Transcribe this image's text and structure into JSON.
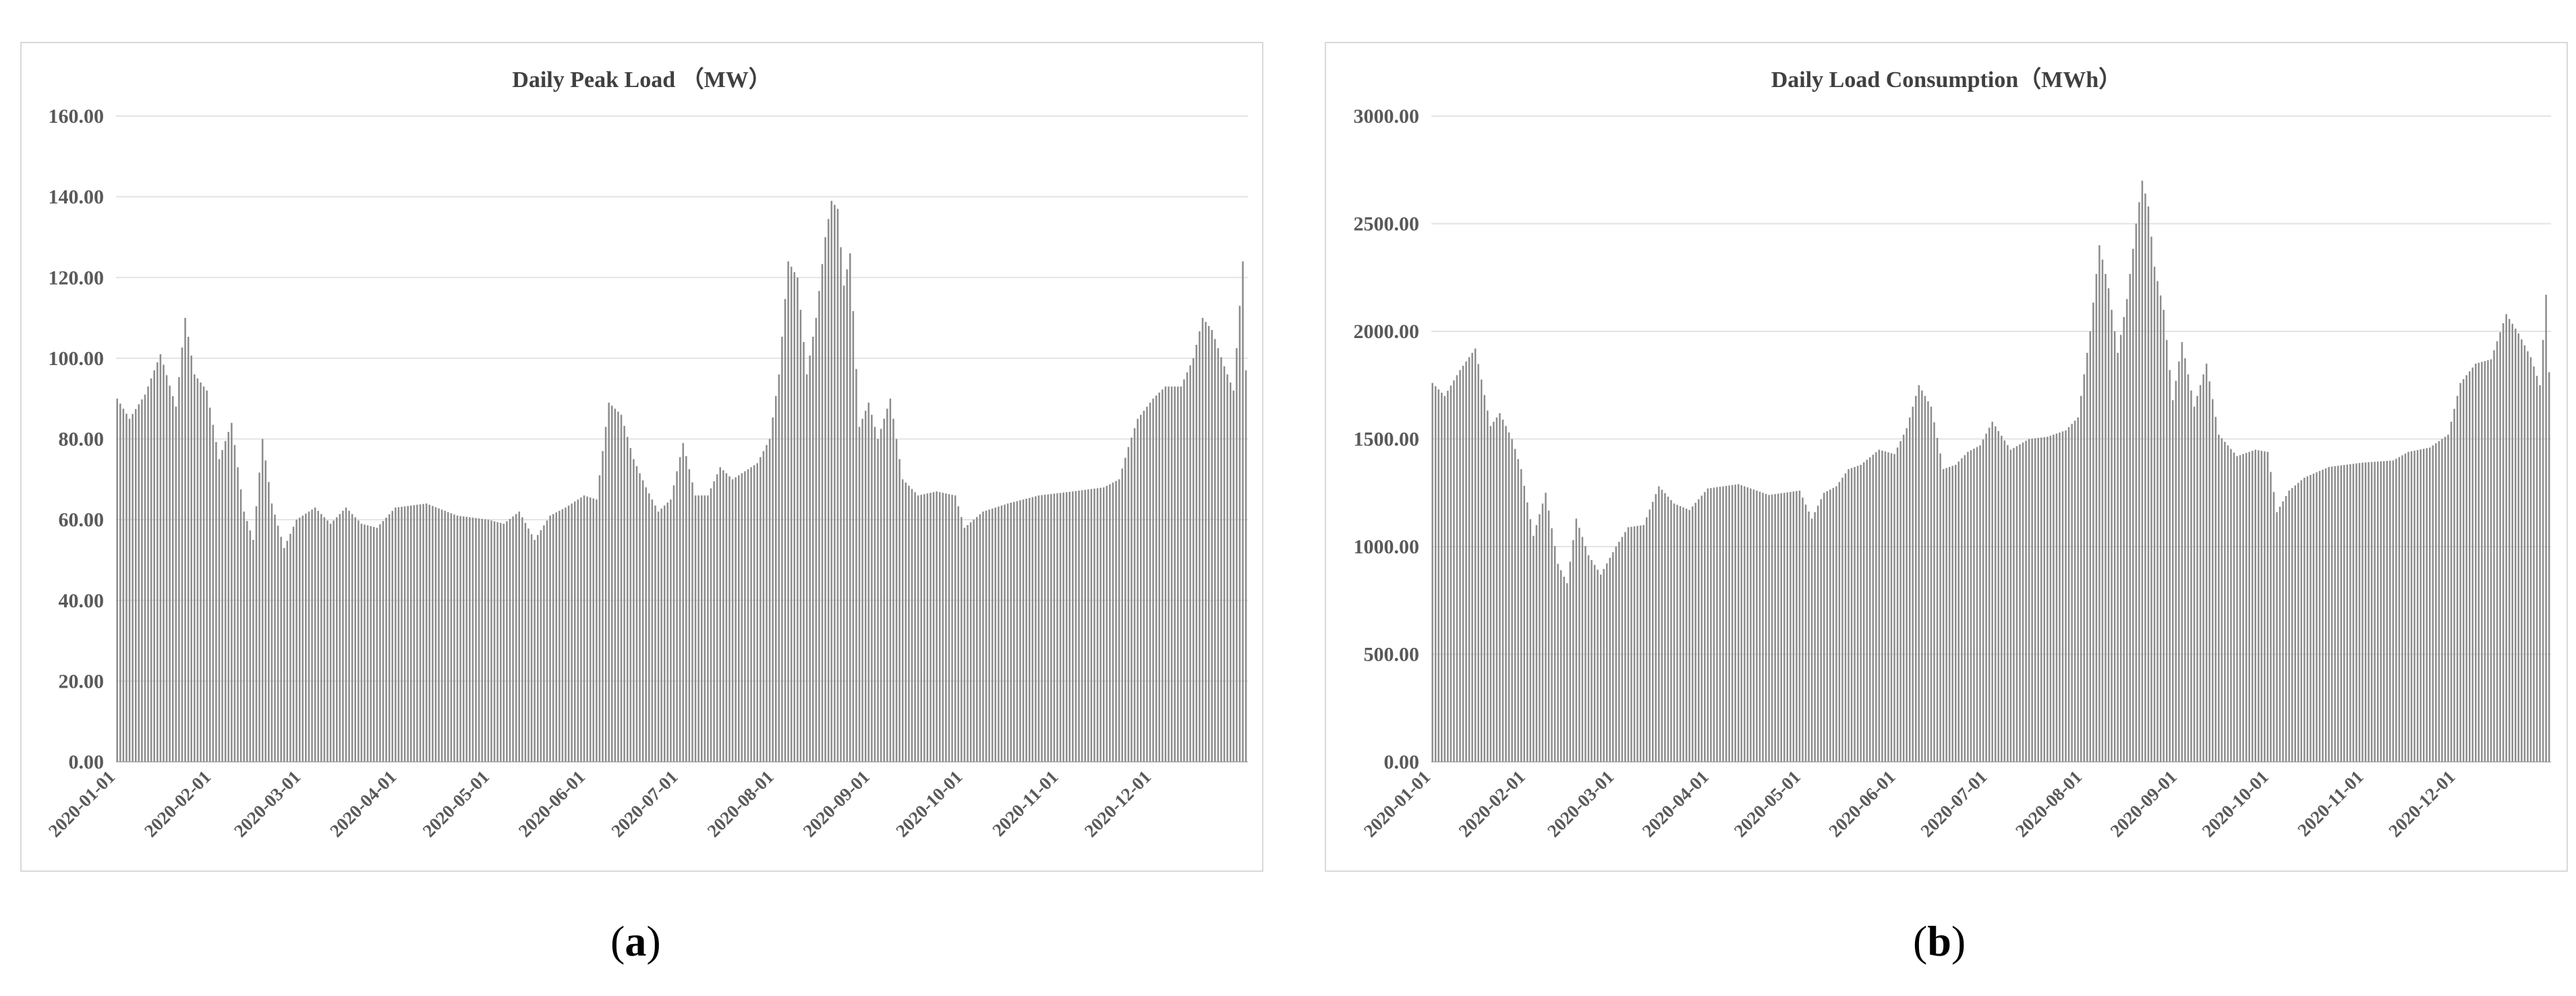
{
  "chart_data": [
    {
      "type": "bar",
      "title": "Daily Peak Load （MW）",
      "xlabel": "",
      "ylabel": "",
      "ylim": [
        0,
        160
      ],
      "y_ticks": [
        "0.00",
        "20.00",
        "40.00",
        "60.00",
        "80.00",
        "100.00",
        "120.00",
        "140.00",
        "160.00"
      ],
      "x_ticks": [
        "2020-01-01",
        "2020-02-01",
        "2020-03-01",
        "2020-04-01",
        "2020-05-01",
        "2020-06-01",
        "2020-07-01",
        "2020-08-01",
        "2020-09-01",
        "2020-10-01",
        "2020-11-01",
        "2020-12-01"
      ],
      "grid": true,
      "bar_color": "#8c8c8c",
      "series": [
        {
          "keypoints": [
            [
              "2020-01-01",
              90
            ],
            [
              "2020-01-05",
              85
            ],
            [
              "2020-01-10",
              91
            ],
            [
              "2020-01-15",
              101
            ],
            [
              "2020-01-20",
              88
            ],
            [
              "2020-01-23",
              110
            ],
            [
              "2020-01-26",
              96
            ],
            [
              "2020-01-30",
              92
            ],
            [
              "2020-02-03",
              75
            ],
            [
              "2020-02-07",
              84
            ],
            [
              "2020-02-11",
              62
            ],
            [
              "2020-02-14",
              55
            ],
            [
              "2020-02-17",
              80
            ],
            [
              "2020-02-20",
              64
            ],
            [
              "2020-02-24",
              53
            ],
            [
              "2020-02-28",
              60
            ],
            [
              "2020-03-05",
              63
            ],
            [
              "2020-03-10",
              59
            ],
            [
              "2020-03-15",
              63
            ],
            [
              "2020-03-20",
              59
            ],
            [
              "2020-03-25",
              58
            ],
            [
              "2020-03-31",
              63
            ],
            [
              "2020-04-10",
              64
            ],
            [
              "2020-04-20",
              61
            ],
            [
              "2020-04-30",
              60
            ],
            [
              "2020-05-05",
              59
            ],
            [
              "2020-05-10",
              62
            ],
            [
              "2020-05-15",
              55
            ],
            [
              "2020-05-20",
              61
            ],
            [
              "2020-05-25",
              63
            ],
            [
              "2020-05-31",
              66
            ],
            [
              "2020-06-04",
              65
            ],
            [
              "2020-06-08",
              89
            ],
            [
              "2020-06-12",
              86
            ],
            [
              "2020-06-16",
              75
            ],
            [
              "2020-06-20",
              68
            ],
            [
              "2020-06-24",
              62
            ],
            [
              "2020-06-28",
              65
            ],
            [
              "2020-07-02",
              79
            ],
            [
              "2020-07-06",
              66
            ],
            [
              "2020-07-10",
              66
            ],
            [
              "2020-07-14",
              73
            ],
            [
              "2020-07-18",
              70
            ],
            [
              "2020-07-22",
              72
            ],
            [
              "2020-07-26",
              74
            ],
            [
              "2020-07-30",
              80
            ],
            [
              "2020-08-02",
              96
            ],
            [
              "2020-08-05",
              124
            ],
            [
              "2020-08-08",
              120
            ],
            [
              "2020-08-11",
              96
            ],
            [
              "2020-08-14",
              110
            ],
            [
              "2020-08-17",
              130
            ],
            [
              "2020-08-19",
              139
            ],
            [
              "2020-08-21",
              137
            ],
            [
              "2020-08-23",
              118
            ],
            [
              "2020-08-25",
              126
            ],
            [
              "2020-08-28",
              83
            ],
            [
              "2020-08-31",
              89
            ],
            [
              "2020-09-03",
              80
            ],
            [
              "2020-09-07",
              90
            ],
            [
              "2020-09-11",
              70
            ],
            [
              "2020-09-16",
              66
            ],
            [
              "2020-09-22",
              67
            ],
            [
              "2020-09-28",
              66
            ],
            [
              "2020-10-01",
              58
            ],
            [
              "2020-10-07",
              62
            ],
            [
              "2020-10-15",
              64
            ],
            [
              "2020-10-25",
              66
            ],
            [
              "2020-11-05",
              67
            ],
            [
              "2020-11-15",
              68
            ],
            [
              "2020-11-20",
              70
            ],
            [
              "2020-11-23",
              78
            ],
            [
              "2020-11-26",
              85
            ],
            [
              "2020-12-01",
              90
            ],
            [
              "2020-12-05",
              93
            ],
            [
              "2020-12-10",
              93
            ],
            [
              "2020-12-14",
              100
            ],
            [
              "2020-12-17",
              110
            ],
            [
              "2020-12-20",
              107
            ],
            [
              "2020-12-24",
              98
            ],
            [
              "2020-12-27",
              92
            ],
            [
              "2020-12-29",
              113
            ],
            [
              "2020-12-30",
              124
            ],
            [
              "2020-12-31",
              97
            ]
          ]
        }
      ]
    },
    {
      "type": "bar",
      "title": "Daily Load Consumption（MWh）",
      "xlabel": "",
      "ylabel": "",
      "ylim": [
        0,
        3000
      ],
      "y_ticks": [
        "0.00",
        "500.00",
        "1000.00",
        "1500.00",
        "2000.00",
        "2500.00",
        "3000.00"
      ],
      "x_ticks": [
        "2020-01-01",
        "2020-02-01",
        "2020-03-01",
        "2020-04-01",
        "2020-05-01",
        "2020-06-01",
        "2020-07-01",
        "2020-08-01",
        "2020-09-01",
        "2020-10-01",
        "2020-11-01",
        "2020-12-01"
      ],
      "grid": true,
      "bar_color": "#8c8c8c",
      "series": [
        {
          "keypoints": [
            [
              "2020-01-01",
              1760
            ],
            [
              "2020-01-05",
              1700
            ],
            [
              "2020-01-10",
              1820
            ],
            [
              "2020-01-15",
              1920
            ],
            [
              "2020-01-20",
              1560
            ],
            [
              "2020-01-23",
              1620
            ],
            [
              "2020-01-27",
              1500
            ],
            [
              "2020-01-30",
              1360
            ],
            [
              "2020-02-03",
              1050
            ],
            [
              "2020-02-07",
              1250
            ],
            [
              "2020-02-11",
              920
            ],
            [
              "2020-02-14",
              830
            ],
            [
              "2020-02-17",
              1130
            ],
            [
              "2020-02-21",
              960
            ],
            [
              "2020-02-25",
              870
            ],
            [
              "2020-03-01",
              1000
            ],
            [
              "2020-03-05",
              1090
            ],
            [
              "2020-03-10",
              1100
            ],
            [
              "2020-03-15",
              1280
            ],
            [
              "2020-03-20",
              1200
            ],
            [
              "2020-03-25",
              1170
            ],
            [
              "2020-03-31",
              1270
            ],
            [
              "2020-04-10",
              1290
            ],
            [
              "2020-04-20",
              1240
            ],
            [
              "2020-04-30",
              1260
            ],
            [
              "2020-05-04",
              1130
            ],
            [
              "2020-05-08",
              1250
            ],
            [
              "2020-05-12",
              1280
            ],
            [
              "2020-05-16",
              1360
            ],
            [
              "2020-05-20",
              1380
            ],
            [
              "2020-05-26",
              1450
            ],
            [
              "2020-05-31",
              1430
            ],
            [
              "2020-06-04",
              1550
            ],
            [
              "2020-06-08",
              1750
            ],
            [
              "2020-06-12",
              1650
            ],
            [
              "2020-06-16",
              1360
            ],
            [
              "2020-06-20",
              1380
            ],
            [
              "2020-06-24",
              1440
            ],
            [
              "2020-06-28",
              1470
            ],
            [
              "2020-07-02",
              1580
            ],
            [
              "2020-07-08",
              1450
            ],
            [
              "2020-07-14",
              1500
            ],
            [
              "2020-07-20",
              1510
            ],
            [
              "2020-07-26",
              1540
            ],
            [
              "2020-07-30",
              1600
            ],
            [
              "2020-08-03",
              2000
            ],
            [
              "2020-08-06",
              2400
            ],
            [
              "2020-08-09",
              2200
            ],
            [
              "2020-08-12",
              1900
            ],
            [
              "2020-08-15",
              2150
            ],
            [
              "2020-08-18",
              2500
            ],
            [
              "2020-08-20",
              2700
            ],
            [
              "2020-08-22",
              2580
            ],
            [
              "2020-08-24",
              2300
            ],
            [
              "2020-08-27",
              2100
            ],
            [
              "2020-08-30",
              1680
            ],
            [
              "2020-09-02",
              1950
            ],
            [
              "2020-09-06",
              1650
            ],
            [
              "2020-09-10",
              1850
            ],
            [
              "2020-09-14",
              1520
            ],
            [
              "2020-09-20",
              1420
            ],
            [
              "2020-09-26",
              1450
            ],
            [
              "2020-09-30",
              1440
            ],
            [
              "2020-10-03",
              1160
            ],
            [
              "2020-10-07",
              1260
            ],
            [
              "2020-10-12",
              1320
            ],
            [
              "2020-10-20",
              1370
            ],
            [
              "2020-10-31",
              1390
            ],
            [
              "2020-11-10",
              1400
            ],
            [
              "2020-11-15",
              1440
            ],
            [
              "2020-11-22",
              1460
            ],
            [
              "2020-11-28",
              1520
            ],
            [
              "2020-12-02",
              1760
            ],
            [
              "2020-12-07",
              1850
            ],
            [
              "2020-12-12",
              1870
            ],
            [
              "2020-12-17",
              2080
            ],
            [
              "2020-12-21",
              1990
            ],
            [
              "2020-12-25",
              1880
            ],
            [
              "2020-12-28",
              1750
            ],
            [
              "2020-12-30",
              2170
            ],
            [
              "2020-12-31",
              1810
            ]
          ]
        }
      ]
    }
  ],
  "captions": [
    "(a)",
    "(b)"
  ],
  "caption_letters": [
    "a",
    "b"
  ]
}
